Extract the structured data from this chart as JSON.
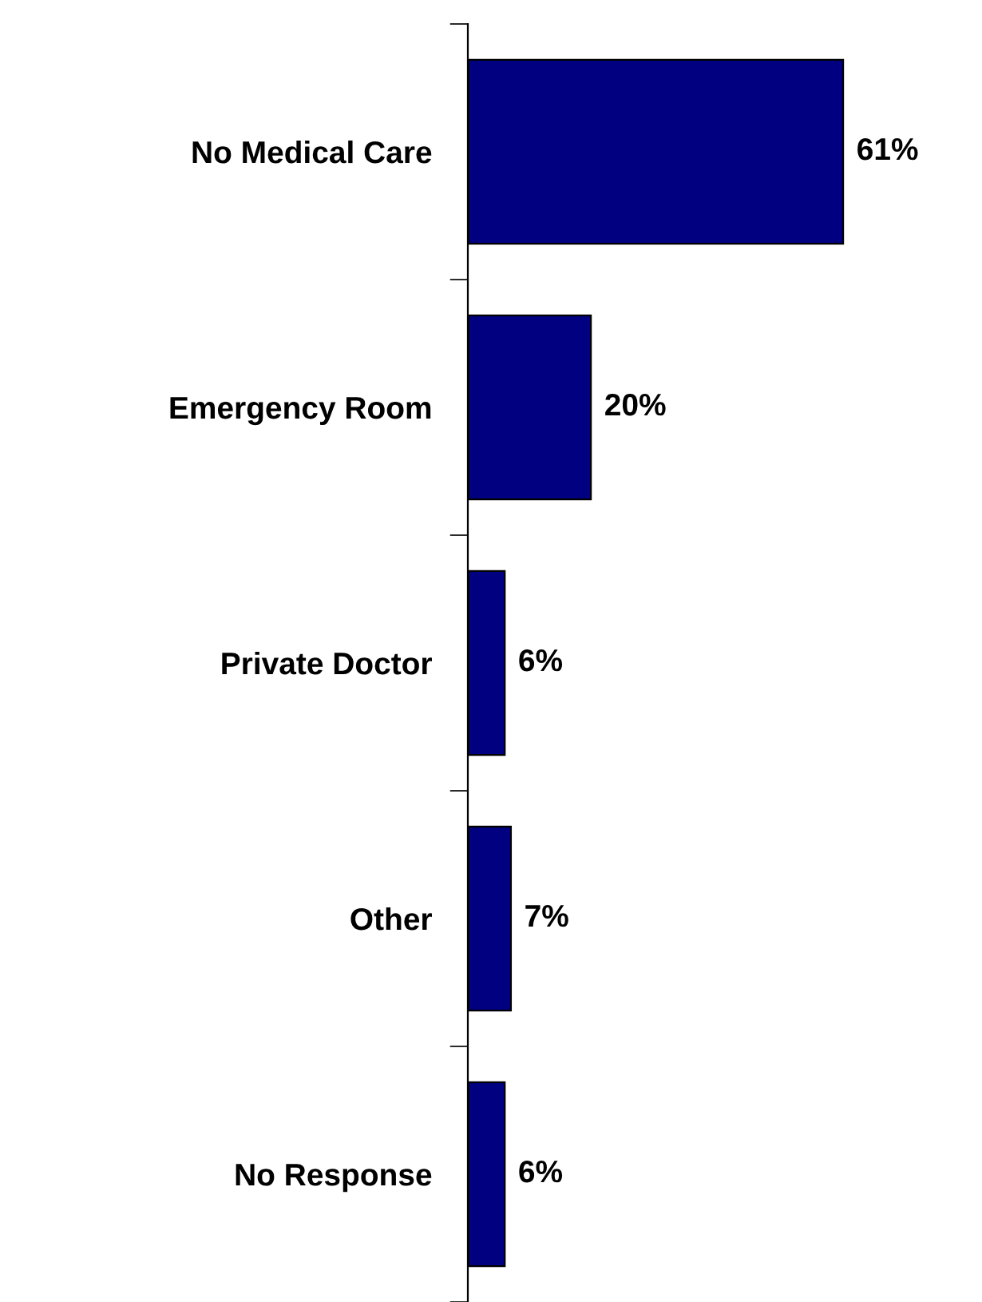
{
  "chart_data": {
    "type": "bar",
    "orientation": "horizontal",
    "categories": [
      "No Medical Care",
      "Emergency Room",
      "Private Doctor",
      "Other",
      "No Response"
    ],
    "values": [
      61,
      20,
      6,
      7,
      6
    ],
    "color": "#000080",
    "value_labels": [
      "61%",
      "20%",
      "6%",
      "7%",
      "6%"
    ],
    "tick_labels": "y",
    "grid": false,
    "legend": false
  }
}
